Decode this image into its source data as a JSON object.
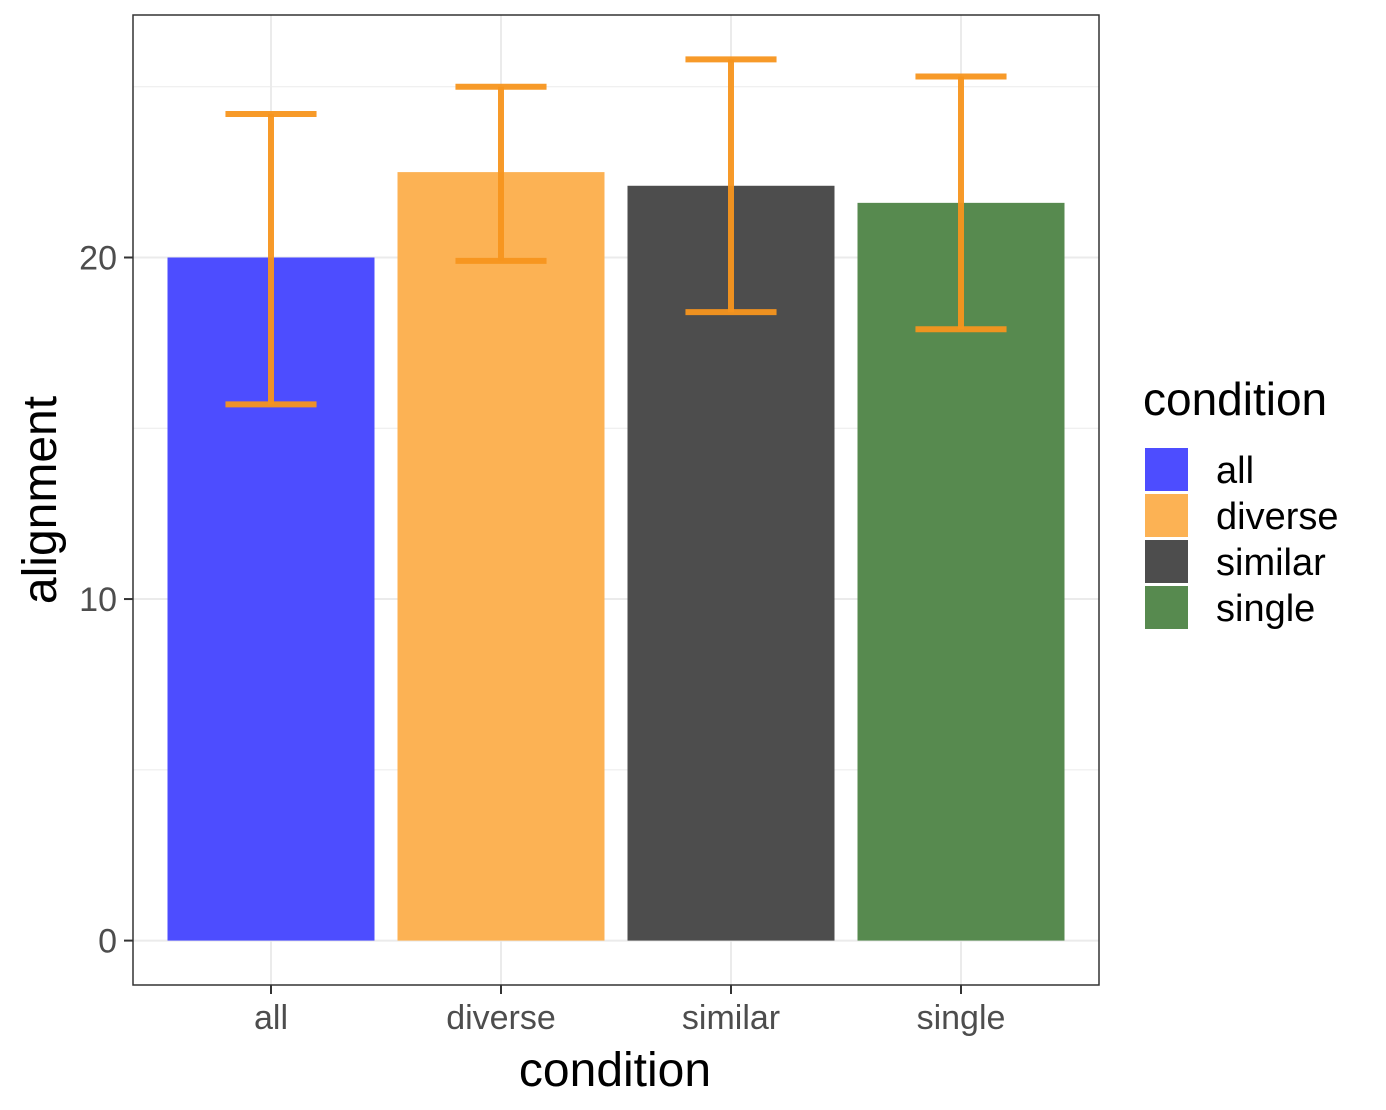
{
  "chart_data": {
    "type": "bar",
    "title": "",
    "xlabel": "condition",
    "ylabel": "alignment",
    "categories": [
      "all",
      "diverse",
      "similar",
      "single"
    ],
    "values": [
      20.0,
      22.5,
      22.1,
      21.6
    ],
    "error_low": [
      15.7,
      19.9,
      18.4,
      17.9
    ],
    "error_high": [
      24.2,
      25.0,
      25.8,
      25.3
    ],
    "colors": [
      "#4d4dff",
      "#fcb254",
      "#4d4d4d",
      "#578a4f"
    ],
    "error_color": "#f7951e",
    "ylim": [
      -1.3,
      27.1
    ],
    "yticks": [
      0,
      10,
      20
    ],
    "ytick_labels": [
      "0",
      "10",
      "20"
    ],
    "grid": true,
    "legend": {
      "title": "condition",
      "position": "right",
      "entries": [
        "all",
        "diverse",
        "similar",
        "single"
      ]
    }
  }
}
